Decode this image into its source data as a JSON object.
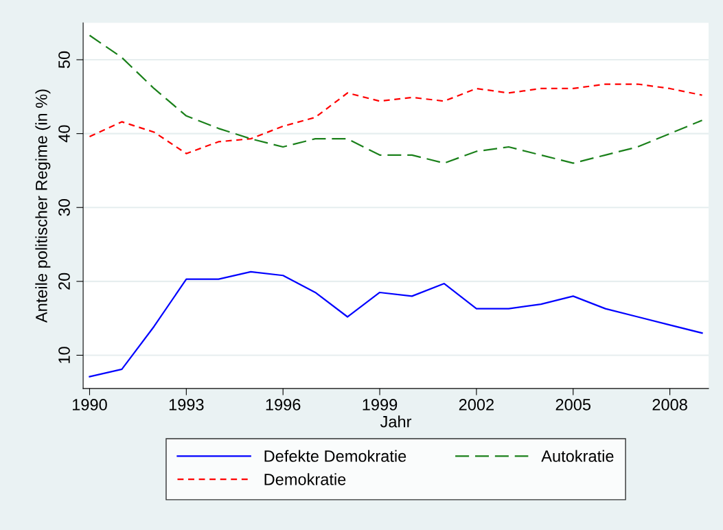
{
  "chart_data": {
    "type": "line",
    "xlabel": "Jahr",
    "ylabel": "Anteile politischer Regime (in %)",
    "x": [
      1990,
      1991,
      1992,
      1993,
      1994,
      1995,
      1996,
      1997,
      1998,
      1999,
      2000,
      2001,
      2002,
      2003,
      2004,
      2005,
      2006,
      2007,
      2008,
      2009
    ],
    "series": [
      {
        "name": "Defekte Demokratie",
        "color": "#0000ff",
        "line_style": "solid",
        "values": [
          7.1,
          8.1,
          13.9,
          20.3,
          20.3,
          21.3,
          20.8,
          18.5,
          15.2,
          18.5,
          18.0,
          19.7,
          16.3,
          16.3,
          16.9,
          18.0,
          16.3,
          15.2,
          14.1,
          13.0
        ]
      },
      {
        "name": "Demokratie",
        "color": "#ff0000",
        "line_style": "dashed",
        "values": [
          39.6,
          41.6,
          40.2,
          37.3,
          38.9,
          39.3,
          41.0,
          42.2,
          45.5,
          44.4,
          44.9,
          44.4,
          46.1,
          45.5,
          46.1,
          46.1,
          46.7,
          46.7,
          46.1,
          45.2
        ]
      },
      {
        "name": "Autokratie",
        "color": "#1a801a",
        "line_style": "longdash",
        "values": [
          53.3,
          50.3,
          46.1,
          42.4,
          40.7,
          39.3,
          38.2,
          39.3,
          39.3,
          37.1,
          37.1,
          36.0,
          37.6,
          38.2,
          37.1,
          36.0,
          37.1,
          38.2,
          40.0,
          41.8
        ]
      }
    ],
    "xlim": [
      1989.8,
      2009.2
    ],
    "ylim": [
      5.5,
      55
    ],
    "xticks": [
      1990,
      1993,
      1996,
      1999,
      2002,
      2005,
      2008
    ],
    "yticks": [
      10,
      20,
      30,
      40,
      50
    ],
    "grid": "y",
    "legend": "bottom",
    "marker": "none"
  }
}
